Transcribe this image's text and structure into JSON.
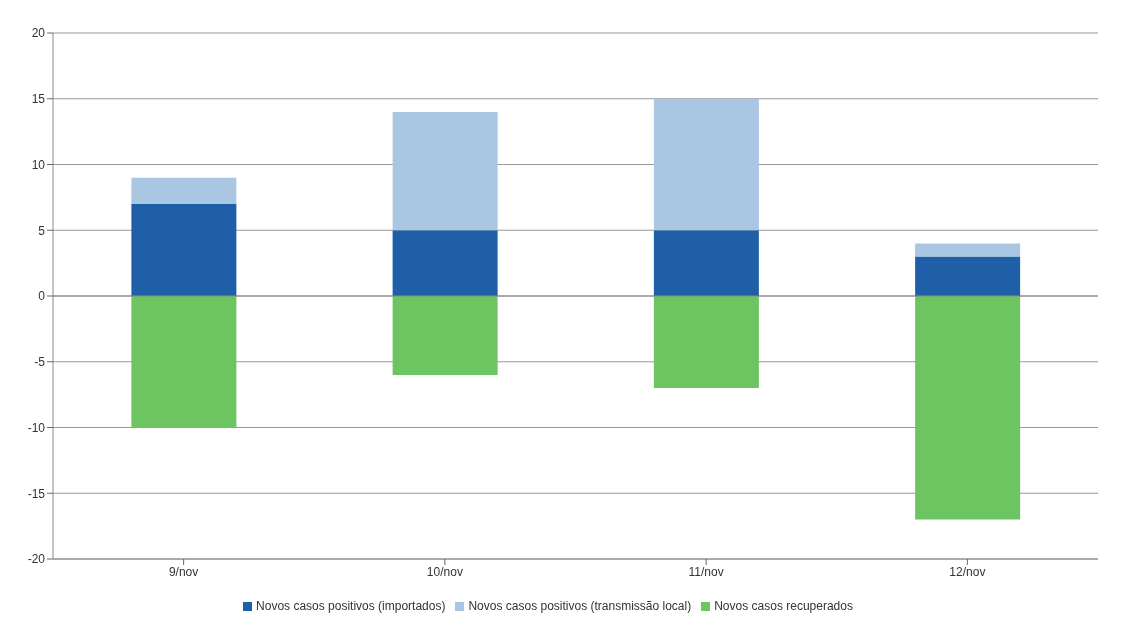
{
  "chart_data": {
    "type": "bar",
    "stacked": true,
    "categories": [
      "9/nov",
      "10/nov",
      "11/nov",
      "12/nov"
    ],
    "series": [
      {
        "name": "Novos casos positivos (importados)",
        "color": "#1f5fa8",
        "values": [
          7,
          5,
          5,
          3
        ]
      },
      {
        "name": "Novos casos positivos (transmissão local)",
        "color": "#a9c6e3",
        "values": [
          2,
          9,
          10,
          1
        ]
      },
      {
        "name": "Novos casos recuperados",
        "color": "#6cc560",
        "values": [
          -10,
          -6,
          -7,
          -17
        ]
      }
    ],
    "ylim": [
      -20,
      20
    ],
    "yticks": [
      -20,
      -15,
      -10,
      -5,
      0,
      5,
      10,
      15,
      20
    ],
    "grid": "y",
    "legend": "bottom"
  }
}
